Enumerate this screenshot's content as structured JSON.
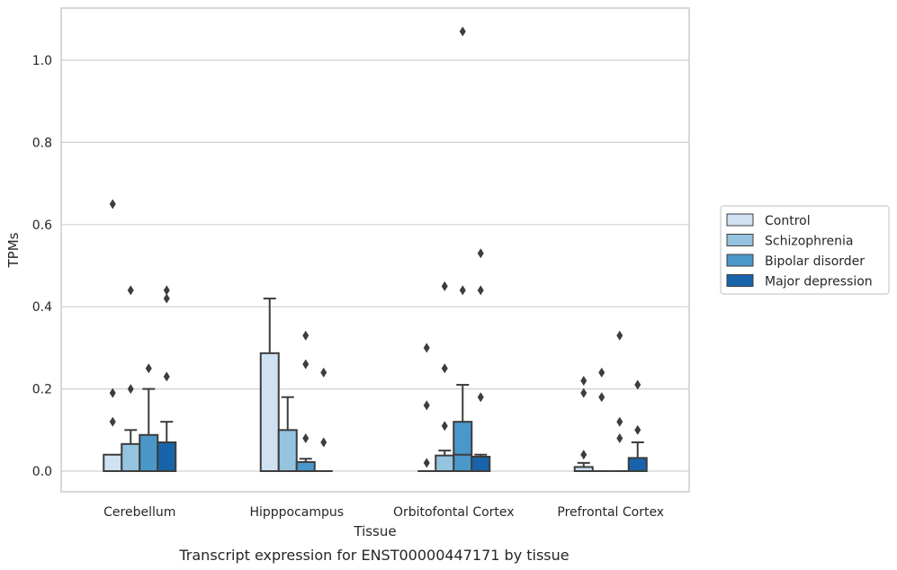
{
  "chart_data": {
    "type": "boxplot",
    "caption": "Transcript expression for ENST00000447171 by tissue",
    "xlabel": "Tissue",
    "ylabel": "TPMs",
    "ylim": [
      -0.05,
      1.13
    ],
    "yticks": [
      "0.0",
      "0.2",
      "0.4",
      "0.6",
      "0.8",
      "1.0"
    ],
    "grid": "horizontal",
    "legend_position": "right",
    "categories": [
      "Cerebellum",
      "Hipppocampus",
      "Orbitofontal Cortex",
      "Prefrontal Cortex"
    ],
    "series": [
      {
        "name": "Control",
        "color": "#d0e1f2",
        "boxes": [
          {
            "q1": 0.0,
            "median": 0.0,
            "q3": 0.04,
            "whisker_low": 0.0,
            "whisker_high": 0.04,
            "outliers": [
              0.12,
              0.19,
              0.65
            ]
          },
          {
            "q1": 0.0,
            "median": 0.0,
            "q3": 0.287,
            "whisker_low": 0.0,
            "whisker_high": 0.42,
            "outliers": []
          },
          {
            "q1": 0.0,
            "median": 0.0,
            "q3": 0.0,
            "whisker_low": 0.0,
            "whisker_high": 0.0,
            "outliers": [
              0.02,
              0.16,
              0.3
            ]
          },
          {
            "q1": 0.0,
            "median": 0.0,
            "q3": 0.01,
            "whisker_low": 0.0,
            "whisker_high": 0.02,
            "outliers": [
              0.04,
              0.19,
              0.22
            ]
          }
        ]
      },
      {
        "name": "Schizophrenia",
        "color": "#94c4df",
        "boxes": [
          {
            "q1": 0.0,
            "median": 0.0,
            "q3": 0.066,
            "whisker_low": 0.0,
            "whisker_high": 0.1,
            "outliers": [
              0.2,
              0.44
            ]
          },
          {
            "q1": 0.0,
            "median": 0.0,
            "q3": 0.1,
            "whisker_low": 0.0,
            "whisker_high": 0.18,
            "outliers": []
          },
          {
            "q1": 0.0,
            "median": 0.0,
            "q3": 0.038,
            "whisker_low": 0.0,
            "whisker_high": 0.05,
            "outliers": [
              0.11,
              0.25,
              0.45
            ]
          },
          {
            "q1": 0.0,
            "median": 0.0,
            "q3": 0.0,
            "whisker_low": 0.0,
            "whisker_high": 0.0,
            "outliers": [
              0.18,
              0.24
            ]
          }
        ]
      },
      {
        "name": "Bipolar disorder",
        "color": "#4a98c9",
        "boxes": [
          {
            "q1": 0.0,
            "median": 0.0,
            "q3": 0.088,
            "whisker_low": 0.0,
            "whisker_high": 0.2,
            "outliers": [
              0.25
            ]
          },
          {
            "q1": 0.0,
            "median": 0.0,
            "q3": 0.022,
            "whisker_low": 0.0,
            "whisker_high": 0.03,
            "outliers": [
              0.08,
              0.26,
              0.33
            ]
          },
          {
            "q1": 0.0,
            "median": 0.04,
            "q3": 0.12,
            "whisker_low": 0.0,
            "whisker_high": 0.21,
            "outliers": [
              0.44,
              1.07
            ]
          },
          {
            "q1": 0.0,
            "median": 0.0,
            "q3": 0.0,
            "whisker_low": 0.0,
            "whisker_high": 0.0,
            "outliers": [
              0.08,
              0.12,
              0.33
            ]
          }
        ]
      },
      {
        "name": "Major depression",
        "color": "#1764ab",
        "boxes": [
          {
            "q1": 0.0,
            "median": 0.0,
            "q3": 0.07,
            "whisker_low": 0.0,
            "whisker_high": 0.12,
            "outliers": [
              0.23,
              0.42,
              0.44
            ]
          },
          {
            "q1": 0.0,
            "median": 0.0,
            "q3": 0.0,
            "whisker_low": 0.0,
            "whisker_high": 0.0,
            "outliers": [
              0.07,
              0.24
            ]
          },
          {
            "q1": 0.0,
            "median": 0.0,
            "q3": 0.035,
            "whisker_low": 0.0,
            "whisker_high": 0.04,
            "outliers": [
              0.18,
              0.44,
              0.53
            ]
          },
          {
            "q1": 0.0,
            "median": 0.0,
            "q3": 0.032,
            "whisker_low": 0.0,
            "whisker_high": 0.07,
            "outliers": [
              0.1,
              0.21
            ]
          }
        ]
      }
    ]
  }
}
